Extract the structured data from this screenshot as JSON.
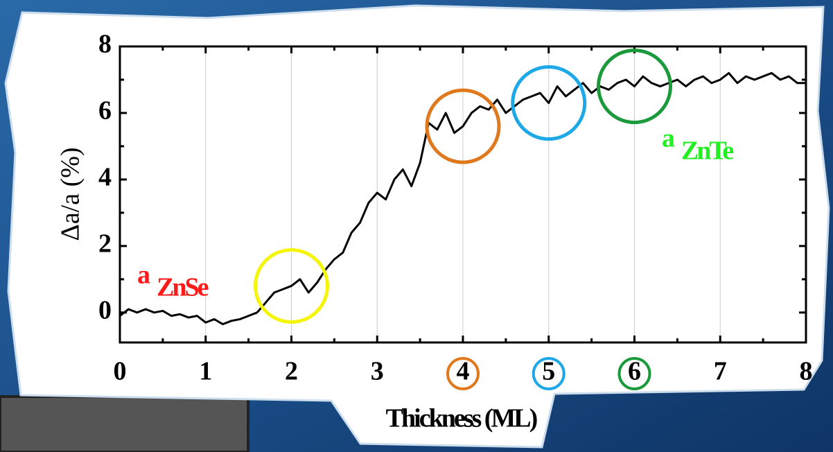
{
  "chart_data": {
    "type": "line",
    "x_label": "Thickness (ML)",
    "y_label": "Δa/a (%)",
    "x": [
      0.0,
      0.1,
      0.2,
      0.3,
      0.4,
      0.5,
      0.6,
      0.7,
      0.8,
      0.9,
      1.0,
      1.1,
      1.2,
      1.3,
      1.4,
      1.5,
      1.6,
      1.7,
      1.8,
      1.9,
      2.0,
      2.1,
      2.2,
      2.3,
      2.4,
      2.5,
      2.6,
      2.7,
      2.8,
      2.9,
      3.0,
      3.1,
      3.2,
      3.3,
      3.4,
      3.5,
      3.6,
      3.7,
      3.8,
      3.9,
      4.0,
      4.1,
      4.2,
      4.3,
      4.4,
      4.5,
      4.6,
      4.7,
      4.8,
      4.9,
      5.0,
      5.1,
      5.2,
      5.3,
      5.4,
      5.5,
      5.6,
      5.7,
      5.8,
      5.9,
      6.0,
      6.1,
      6.2,
      6.3,
      6.4,
      6.5,
      6.6,
      6.7,
      6.8,
      6.9,
      7.0,
      7.1,
      7.2,
      7.3,
      7.4,
      7.5,
      7.6,
      7.7,
      7.8,
      7.9,
      8.0
    ],
    "series": [
      {
        "color": "#000000",
        "values": [
          -0.1,
          0.1,
          0.0,
          0.1,
          0.0,
          0.05,
          -0.1,
          -0.05,
          -0.15,
          -0.1,
          -0.3,
          -0.2,
          -0.35,
          -0.25,
          -0.2,
          -0.1,
          0.0,
          0.3,
          0.6,
          0.7,
          0.8,
          1.0,
          0.6,
          0.9,
          1.3,
          1.6,
          1.8,
          2.4,
          2.7,
          3.3,
          3.6,
          3.4,
          4.0,
          4.3,
          3.8,
          4.5,
          5.7,
          5.5,
          6.0,
          5.4,
          5.6,
          6.0,
          6.2,
          6.1,
          6.4,
          6.0,
          6.2,
          6.4,
          6.5,
          6.6,
          6.3,
          6.8,
          6.5,
          6.7,
          6.9,
          6.6,
          6.8,
          6.7,
          6.9,
          7.0,
          6.8,
          7.1,
          6.9,
          6.8,
          6.9,
          7.0,
          6.8,
          7.0,
          7.1,
          6.9,
          7.0,
          7.2,
          6.9,
          7.1,
          7.0,
          7.1,
          7.2,
          7.0,
          7.1,
          6.9,
          6.9
        ]
      }
    ],
    "xlim": [
      0,
      8
    ],
    "xticks": [
      0,
      1,
      2,
      3,
      4,
      5,
      6,
      7,
      8
    ],
    "ylim": [
      -0.9,
      8
    ],
    "yticks": [
      0,
      2,
      4,
      6,
      8
    ],
    "grid": true,
    "annotations": [
      {
        "text": "a",
        "sub": "ZnSe",
        "color": "#ff1a1a"
      },
      {
        "text": "a",
        "sub": "ZnTe",
        "color": "#22ee22"
      }
    ],
    "highlights": [
      {
        "x": 2,
        "color": "#f5f50a"
      },
      {
        "x": 4,
        "color": "#e0781e"
      },
      {
        "x": 5,
        "color": "#1ea8e8"
      },
      {
        "x": 6,
        "color": "#1a9a3a"
      }
    ]
  }
}
